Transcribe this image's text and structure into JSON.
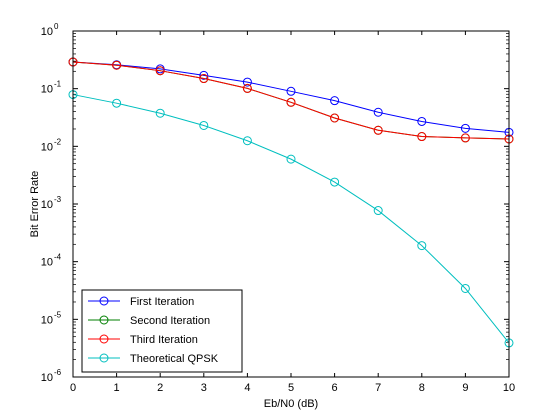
{
  "chart_data": {
    "type": "line",
    "xlabel": "Eb/N0 (dB)",
    "ylabel": "Bit Error Rate",
    "x": [
      0,
      1,
      2,
      3,
      4,
      5,
      6,
      7,
      8,
      9,
      10
    ],
    "xlim": [
      0,
      10
    ],
    "ylim": [
      1e-06,
      1
    ],
    "yscale": "log",
    "x_ticks": [
      "0",
      "1",
      "2",
      "3",
      "4",
      "5",
      "6",
      "7",
      "8",
      "9",
      "10"
    ],
    "y_tick_exponents": [
      "0",
      "-1",
      "-2",
      "-3",
      "-4",
      "-5",
      "-6"
    ],
    "y_tick_base": "10",
    "grid": false,
    "legend_position": "bottom-left",
    "marker": "circle",
    "series": [
      {
        "name": "First Iteration",
        "color": "#0000ff",
        "values": [
          0.29,
          0.26,
          0.22,
          0.17,
          0.13,
          0.09,
          0.062,
          0.039,
          0.027,
          0.0205,
          0.0175
        ]
      },
      {
        "name": "Second Iteration",
        "color": "#007f00",
        "values": [
          0.29,
          0.255,
          0.205,
          0.15,
          0.101,
          0.058,
          0.031,
          0.019,
          0.0148,
          0.014,
          0.0134
        ]
      },
      {
        "name": "Third Iteration",
        "color": "#ff0000",
        "values": [
          0.29,
          0.255,
          0.205,
          0.15,
          0.101,
          0.058,
          0.031,
          0.019,
          0.0148,
          0.014,
          0.0134
        ]
      },
      {
        "name": "Theoretical QPSK",
        "color": "#00bfbf",
        "values": [
          0.079,
          0.056,
          0.0375,
          0.023,
          0.0125,
          0.006,
          0.0024,
          0.00077,
          0.00019,
          3.43e-05,
          3.9e-06
        ]
      }
    ]
  }
}
